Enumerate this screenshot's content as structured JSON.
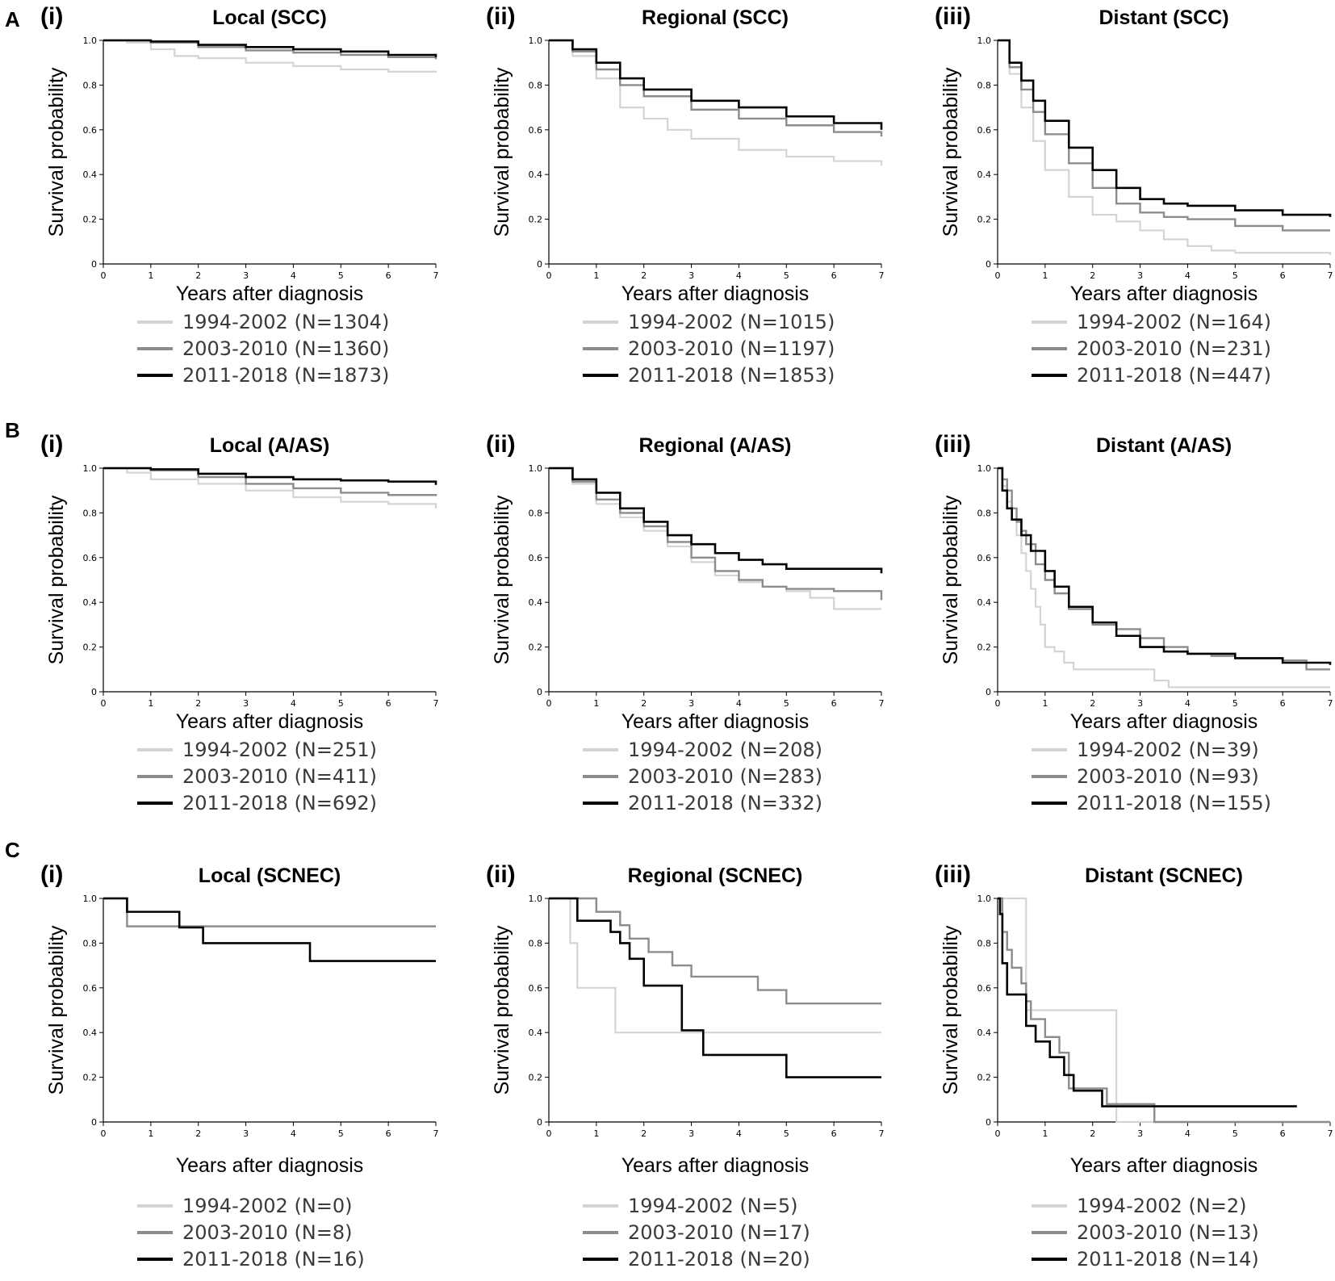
{
  "figure": {
    "row_labels": [
      "A",
      "B",
      "C"
    ],
    "colors": {
      "early": "#d4d4d4",
      "middle": "#8c8c8c",
      "late": "#000000"
    }
  },
  "chart_data": [
    {
      "id": "A-i",
      "row": "A",
      "num": "(i)",
      "type": "line",
      "title": "Local (SCC)",
      "xlabel": "Years after diagnosis",
      "ylabel": "Survival probability",
      "xlim": [
        0,
        7
      ],
      "ylim": [
        0,
        1
      ],
      "xticks": [
        "0",
        "1",
        "2",
        "3",
        "4",
        "5",
        "6",
        "7"
      ],
      "yticks": [
        "0",
        "0.2",
        "0.4",
        "0.6",
        "0.8",
        "1.0"
      ],
      "series": [
        {
          "name": "1994-2002 (N=1304)",
          "x": [
            0,
            0.5,
            1,
            1.5,
            2,
            3,
            4,
            5,
            6,
            7
          ],
          "y": [
            1,
            0.99,
            0.96,
            0.93,
            0.92,
            0.9,
            0.885,
            0.87,
            0.86,
            0.855
          ]
        },
        {
          "name": "2003-2010 (N=1360)",
          "x": [
            0,
            1,
            2,
            3,
            4,
            5,
            6,
            7
          ],
          "y": [
            1,
            0.99,
            0.97,
            0.955,
            0.945,
            0.935,
            0.925,
            0.915
          ]
        },
        {
          "name": "2011-2018 (N=1873)",
          "x": [
            0,
            1,
            2,
            3,
            4,
            5,
            6,
            7
          ],
          "y": [
            1,
            0.995,
            0.98,
            0.97,
            0.96,
            0.95,
            0.935,
            0.925
          ]
        }
      ]
    },
    {
      "id": "A-ii",
      "row": "A",
      "num": "(ii)",
      "type": "line",
      "title": "Regional (SCC)",
      "xlabel": "Years after diagnosis",
      "ylabel": "Survival probability",
      "xlim": [
        0,
        7
      ],
      "ylim": [
        0,
        1
      ],
      "xticks": [
        "0",
        "1",
        "2",
        "3",
        "4",
        "5",
        "6",
        "7"
      ],
      "yticks": [
        "0",
        "0.2",
        "0.4",
        "0.6",
        "0.8",
        "1.0"
      ],
      "series": [
        {
          "name": "1994-2002 (N=1015)",
          "x": [
            0,
            0.5,
            1,
            1.5,
            2,
            2.5,
            3,
            4,
            5,
            6,
            7
          ],
          "y": [
            1,
            0.93,
            0.83,
            0.7,
            0.65,
            0.6,
            0.56,
            0.51,
            0.48,
            0.46,
            0.44
          ]
        },
        {
          "name": "2003-2010 (N=1197)",
          "x": [
            0,
            0.5,
            1,
            1.5,
            2,
            3,
            4,
            5,
            6,
            7
          ],
          "y": [
            1,
            0.95,
            0.87,
            0.8,
            0.75,
            0.69,
            0.65,
            0.62,
            0.59,
            0.57
          ]
        },
        {
          "name": "2011-2018 (N=1853)",
          "x": [
            0,
            0.5,
            1,
            1.5,
            2,
            3,
            4,
            5,
            6,
            7
          ],
          "y": [
            1,
            0.96,
            0.9,
            0.83,
            0.78,
            0.73,
            0.7,
            0.66,
            0.63,
            0.6
          ]
        }
      ]
    },
    {
      "id": "A-iii",
      "row": "A",
      "num": "(iii)",
      "type": "line",
      "title": "Distant (SCC)",
      "xlabel": "Years after diagnosis",
      "ylabel": "Survival probability",
      "xlim": [
        0,
        7
      ],
      "ylim": [
        0,
        1
      ],
      "xticks": [
        "0",
        "1",
        "2",
        "3",
        "4",
        "5",
        "6",
        "7"
      ],
      "yticks": [
        "0",
        "0.2",
        "0.4",
        "0.6",
        "0.8",
        "1.0"
      ],
      "series": [
        {
          "name": "1994-2002 (N=164)",
          "x": [
            0,
            0.25,
            0.5,
            0.75,
            1,
            1.5,
            2,
            2.5,
            3,
            3.5,
            4,
            4.5,
            5,
            6,
            7
          ],
          "y": [
            1,
            0.85,
            0.7,
            0.55,
            0.42,
            0.3,
            0.22,
            0.19,
            0.15,
            0.11,
            0.08,
            0.06,
            0.05,
            0.05,
            0.04
          ]
        },
        {
          "name": "2003-2010 (N=231)",
          "x": [
            0,
            0.25,
            0.5,
            0.75,
            1,
            1.5,
            2,
            2.5,
            3,
            3.5,
            4,
            5,
            6,
            7
          ],
          "y": [
            1,
            0.88,
            0.78,
            0.68,
            0.58,
            0.45,
            0.34,
            0.27,
            0.23,
            0.21,
            0.2,
            0.17,
            0.15,
            0.15
          ]
        },
        {
          "name": "2011-2018 (N=447)",
          "x": [
            0,
            0.25,
            0.5,
            0.75,
            1,
            1.5,
            2,
            2.5,
            3,
            3.5,
            4,
            5,
            6,
            7
          ],
          "y": [
            1,
            0.9,
            0.82,
            0.73,
            0.64,
            0.52,
            0.42,
            0.34,
            0.29,
            0.27,
            0.26,
            0.24,
            0.22,
            0.21
          ]
        }
      ]
    },
    {
      "id": "B-i",
      "row": "B",
      "num": "(i)",
      "type": "line",
      "title": "Local (A/AS)",
      "xlabel": "Years after diagnosis",
      "ylabel": "Survival probability",
      "xlim": [
        0,
        7
      ],
      "ylim": [
        0,
        1
      ],
      "xticks": [
        "0",
        "1",
        "2",
        "3",
        "4",
        "5",
        "6",
        "7"
      ],
      "yticks": [
        "0",
        "0.2",
        "0.4",
        "0.6",
        "0.8",
        "1.0"
      ],
      "series": [
        {
          "name": "1994-2002 (N=251)",
          "x": [
            0,
            0.5,
            1,
            2,
            3,
            4,
            5,
            6,
            7
          ],
          "y": [
            1,
            0.98,
            0.95,
            0.93,
            0.9,
            0.87,
            0.85,
            0.84,
            0.82
          ]
        },
        {
          "name": "2003-2010 (N=411)",
          "x": [
            0,
            1,
            2,
            3,
            4,
            5,
            6,
            7
          ],
          "y": [
            1,
            0.99,
            0.96,
            0.93,
            0.91,
            0.89,
            0.88,
            0.875
          ]
        },
        {
          "name": "2011-2018 (N=692)",
          "x": [
            0,
            1,
            2,
            3,
            4,
            5,
            6,
            7
          ],
          "y": [
            1,
            0.995,
            0.975,
            0.96,
            0.95,
            0.945,
            0.94,
            0.925
          ]
        }
      ]
    },
    {
      "id": "B-ii",
      "row": "B",
      "num": "(ii)",
      "type": "line",
      "title": "Regional (A/AS)",
      "xlabel": "Years after diagnosis",
      "ylabel": "Survival probability",
      "xlim": [
        0,
        7
      ],
      "ylim": [
        0,
        1
      ],
      "xticks": [
        "0",
        "1",
        "2",
        "3",
        "4",
        "5",
        "6",
        "7"
      ],
      "yticks": [
        "0",
        "0.2",
        "0.4",
        "0.6",
        "0.8",
        "1.0"
      ],
      "series": [
        {
          "name": "1994-2002 (N=208)",
          "x": [
            0,
            0.5,
            1,
            1.5,
            2,
            2.5,
            3,
            3.5,
            4,
            4.5,
            5,
            5.5,
            6,
            7
          ],
          "y": [
            1,
            0.93,
            0.84,
            0.78,
            0.72,
            0.65,
            0.58,
            0.52,
            0.49,
            0.47,
            0.45,
            0.42,
            0.37,
            0.37
          ]
        },
        {
          "name": "2003-2010 (N=283)",
          "x": [
            0,
            0.5,
            1,
            1.5,
            2,
            2.5,
            3,
            3.5,
            4,
            4.5,
            5,
            6,
            7
          ],
          "y": [
            1,
            0.94,
            0.86,
            0.8,
            0.74,
            0.67,
            0.6,
            0.54,
            0.5,
            0.47,
            0.46,
            0.45,
            0.41
          ]
        },
        {
          "name": "2011-2018 (N=332)",
          "x": [
            0,
            0.5,
            1,
            1.5,
            2,
            2.5,
            3,
            3.5,
            4,
            4.5,
            5,
            6,
            7
          ],
          "y": [
            1,
            0.95,
            0.89,
            0.82,
            0.76,
            0.7,
            0.66,
            0.62,
            0.59,
            0.57,
            0.55,
            0.55,
            0.53
          ]
        }
      ]
    },
    {
      "id": "B-iii",
      "row": "B",
      "num": "(iii)",
      "type": "line",
      "title": "Distant (A/AS)",
      "xlabel": "Years after diagnosis",
      "ylabel": "Survival probability",
      "xlim": [
        0,
        7
      ],
      "ylim": [
        0,
        1
      ],
      "xticks": [
        "0",
        "1",
        "2",
        "3",
        "4",
        "5",
        "6",
        "7"
      ],
      "yticks": [
        "0",
        "0.2",
        "0.4",
        "0.6",
        "0.8",
        "1.0"
      ],
      "series": [
        {
          "name": "1994-2002 (N=39)",
          "x": [
            0,
            0.1,
            0.2,
            0.3,
            0.4,
            0.5,
            0.6,
            0.7,
            0.8,
            0.9,
            1,
            1.2,
            1.4,
            1.6,
            2,
            3,
            3.3,
            3.6,
            4,
            5,
            6,
            7
          ],
          "y": [
            1,
            0.92,
            0.85,
            0.77,
            0.7,
            0.62,
            0.54,
            0.46,
            0.38,
            0.3,
            0.2,
            0.18,
            0.13,
            0.1,
            0.1,
            0.1,
            0.05,
            0.02,
            0.02,
            0.02,
            0.02,
            0.02
          ]
        },
        {
          "name": "2003-2010 (N=93)",
          "x": [
            0,
            0.1,
            0.2,
            0.3,
            0.4,
            0.5,
            0.6,
            0.8,
            1,
            1.2,
            1.5,
            2,
            2.5,
            3,
            3.5,
            4,
            4.5,
            5,
            6,
            6.5,
            7
          ],
          "y": [
            1,
            0.95,
            0.9,
            0.82,
            0.76,
            0.72,
            0.66,
            0.57,
            0.5,
            0.44,
            0.37,
            0.3,
            0.28,
            0.24,
            0.2,
            0.17,
            0.16,
            0.15,
            0.14,
            0.1,
            0.1
          ]
        },
        {
          "name": "2011-2018 (N=155)",
          "x": [
            0,
            0.1,
            0.2,
            0.3,
            0.5,
            0.7,
            1,
            1.2,
            1.5,
            2,
            2.5,
            3,
            3.5,
            4,
            5,
            6,
            7
          ],
          "y": [
            1,
            0.9,
            0.82,
            0.77,
            0.7,
            0.63,
            0.54,
            0.47,
            0.38,
            0.31,
            0.25,
            0.2,
            0.18,
            0.17,
            0.15,
            0.13,
            0.12
          ]
        }
      ]
    },
    {
      "id": "C-i",
      "row": "C",
      "num": "(i)",
      "type": "line",
      "title": "Local (SCNEC)",
      "xlabel": "Years after diagnosis",
      "ylabel": "Survival probability",
      "xlim": [
        0,
        7
      ],
      "ylim": [
        0,
        1
      ],
      "xticks": [
        "0",
        "1",
        "2",
        "3",
        "4",
        "5",
        "6",
        "7"
      ],
      "yticks": [
        "0",
        "0.2",
        "0.4",
        "0.6",
        "0.8",
        "1.0"
      ],
      "series": [
        {
          "name": "1994-2002 (N=0)",
          "x": [],
          "y": []
        },
        {
          "name": "2003-2010 (N=8)",
          "x": [
            0,
            0.5,
            7
          ],
          "y": [
            1,
            0.875,
            0.875
          ]
        },
        {
          "name": "2011-2018 (N=16)",
          "x": [
            0,
            0.5,
            1.6,
            2.1,
            4.35,
            7
          ],
          "y": [
            1,
            0.94,
            0.87,
            0.8,
            0.72,
            0.72
          ]
        }
      ]
    },
    {
      "id": "C-ii",
      "row": "C",
      "num": "(ii)",
      "type": "line",
      "title": "Regional (SCNEC)",
      "xlabel": "Years after diagnosis",
      "ylabel": "Survival probability",
      "xlim": [
        0,
        7
      ],
      "ylim": [
        0,
        1
      ],
      "xticks": [
        "0",
        "1",
        "2",
        "3",
        "4",
        "5",
        "6",
        "7"
      ],
      "yticks": [
        "0",
        "0.2",
        "0.4",
        "0.6",
        "0.8",
        "1.0"
      ],
      "series": [
        {
          "name": "1994-2002 (N=5)",
          "x": [
            0,
            0.45,
            0.6,
            1.4,
            7
          ],
          "y": [
            1,
            0.8,
            0.6,
            0.4,
            0.4
          ]
        },
        {
          "name": "2003-2010 (N=17)",
          "x": [
            0,
            1,
            1.5,
            1.7,
            2.1,
            2.6,
            3,
            4.4,
            5,
            7
          ],
          "y": [
            1,
            0.94,
            0.88,
            0.82,
            0.76,
            0.7,
            0.65,
            0.59,
            0.53,
            0.53
          ]
        },
        {
          "name": "2011-2018 (N=20)",
          "x": [
            0,
            0.6,
            1.3,
            1.5,
            1.7,
            2,
            2.8,
            3.25,
            5,
            7
          ],
          "y": [
            1,
            0.9,
            0.85,
            0.8,
            0.73,
            0.61,
            0.41,
            0.3,
            0.2,
            0.2
          ]
        }
      ]
    },
    {
      "id": "C-iii",
      "row": "C",
      "num": "(iii)",
      "type": "line",
      "title": "Distant (SCNEC)",
      "xlabel": "Years after diagnosis",
      "ylabel": "Survival probability",
      "xlim": [
        0,
        7
      ],
      "ylim": [
        0,
        1
      ],
      "xticks": [
        "0",
        "1",
        "2",
        "3",
        "4",
        "5",
        "6",
        "7"
      ],
      "yticks": [
        "0",
        "0.2",
        "0.4",
        "0.6",
        "0.8",
        "1.0"
      ],
      "series": [
        {
          "name": "1994-2002 (N=2)",
          "x": [
            0,
            0.6,
            2.5,
            7
          ],
          "y": [
            1,
            0.5,
            0,
            0
          ]
        },
        {
          "name": "2003-2010 (N=13)",
          "x": [
            0,
            0.1,
            0.2,
            0.3,
            0.5,
            0.6,
            0.7,
            1,
            1.3,
            1.5,
            1.9,
            2.3,
            3.3,
            7
          ],
          "y": [
            1,
            0.85,
            0.77,
            0.69,
            0.62,
            0.54,
            0.46,
            0.38,
            0.31,
            0.15,
            0.15,
            0.08,
            0,
            0
          ]
        },
        {
          "name": "2011-2018 (N=14)",
          "x": [
            0,
            0.05,
            0.1,
            0.2,
            0.6,
            0.8,
            1.1,
            1.4,
            1.6,
            1.8,
            2.2,
            6.3
          ],
          "y": [
            1,
            0.93,
            0.71,
            0.57,
            0.43,
            0.36,
            0.29,
            0.21,
            0.14,
            0.14,
            0.07,
            0.07
          ]
        }
      ]
    }
  ]
}
